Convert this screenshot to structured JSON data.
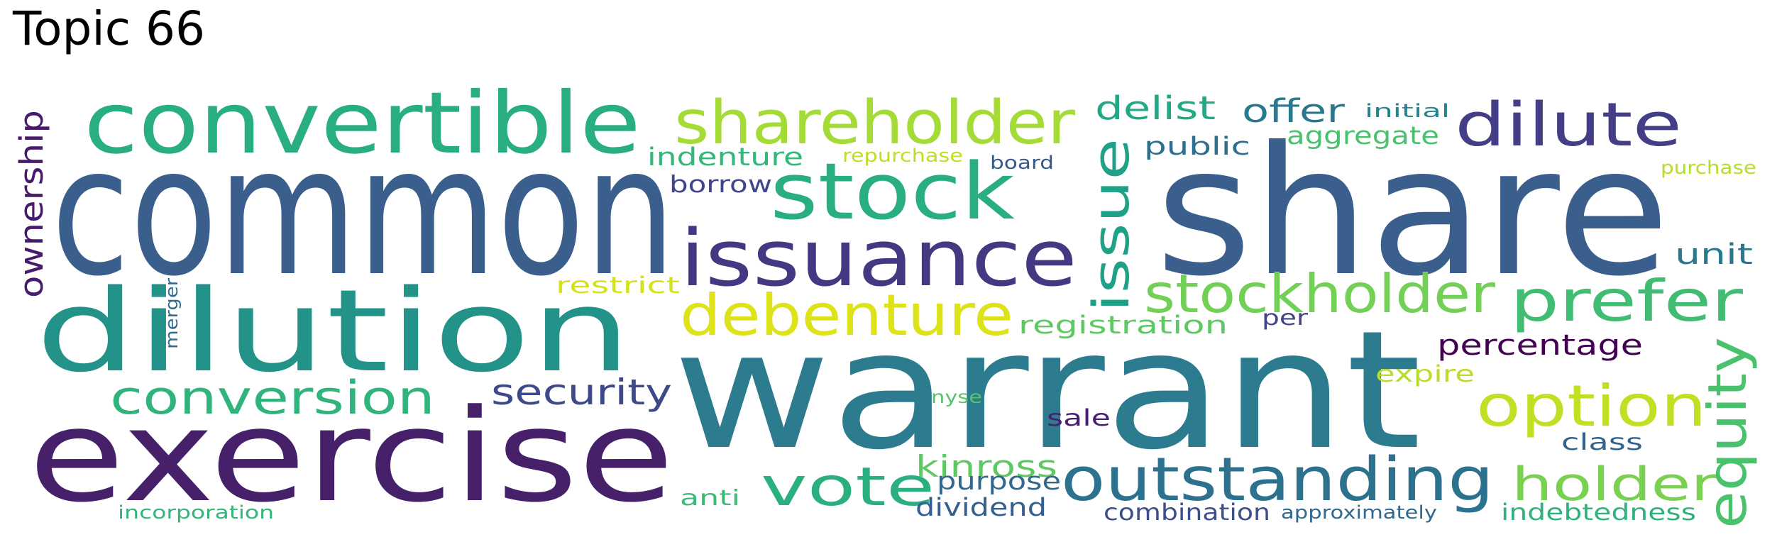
{
  "title": "Topic 66",
  "words": [
    {
      "text": "common",
      "color": "#3b5f8d"
    },
    {
      "text": "share",
      "color": "#3b5f8d"
    },
    {
      "text": "warrant",
      "color": "#2c7b8e"
    },
    {
      "text": "exercise",
      "color": "#46216a"
    },
    {
      "text": "dilution",
      "color": "#23938a"
    },
    {
      "text": "convertible",
      "color": "#29af7f"
    },
    {
      "text": "stock",
      "color": "#28ae80"
    },
    {
      "text": "issuance",
      "color": "#453781"
    },
    {
      "text": "shareholder",
      "color": "#a5db36"
    },
    {
      "text": "dilute",
      "color": "#433e85"
    },
    {
      "text": "debenture",
      "color": "#dde318"
    },
    {
      "text": "stockholder",
      "color": "#73d056"
    },
    {
      "text": "prefer",
      "color": "#40bd72"
    },
    {
      "text": "option",
      "color": "#c2df23"
    },
    {
      "text": "outstanding",
      "color": "#2c728e"
    },
    {
      "text": "conversion",
      "color": "#2fb47c"
    },
    {
      "text": "vote",
      "color": "#2ab07f"
    },
    {
      "text": "holder",
      "color": "#7ad151"
    },
    {
      "text": "equity",
      "color": "#4ac16d"
    },
    {
      "text": "issue",
      "color": "#1fa187"
    },
    {
      "text": "security",
      "color": "#3e4989"
    },
    {
      "text": "delist",
      "color": "#22a884"
    },
    {
      "text": "offer",
      "color": "#2a788e"
    },
    {
      "text": "ownership",
      "color": "#481a6c"
    },
    {
      "text": "percentage",
      "color": "#440154"
    },
    {
      "text": "indenture",
      "color": "#35b779"
    },
    {
      "text": "kinross",
      "color": "#5ec962"
    },
    {
      "text": "public",
      "color": "#2e6e8e"
    },
    {
      "text": "aggregate",
      "color": "#4ac16d"
    },
    {
      "text": "registration",
      "color": "#5ec962"
    },
    {
      "text": "purpose",
      "color": "#31688e"
    },
    {
      "text": "unit",
      "color": "#2a788e"
    },
    {
      "text": "borrow",
      "color": "#404688"
    },
    {
      "text": "dividend",
      "color": "#355f8d"
    },
    {
      "text": "combination",
      "color": "#3d4e8a"
    },
    {
      "text": "indebtedness",
      "color": "#2db27d"
    },
    {
      "text": "restrict",
      "color": "#d5e21a"
    },
    {
      "text": "repurchase",
      "color": "#bddf26"
    },
    {
      "text": "board",
      "color": "#375a8c"
    },
    {
      "text": "initial",
      "color": "#25838e"
    },
    {
      "text": "purchase",
      "color": "#b5de2b"
    },
    {
      "text": "expire",
      "color": "#b8de29"
    },
    {
      "text": "class",
      "color": "#33638d"
    },
    {
      "text": "sale",
      "color": "#481f70"
    },
    {
      "text": "per",
      "color": "#414487"
    },
    {
      "text": "nyse",
      "color": "#54c568"
    },
    {
      "text": "anti",
      "color": "#3bbb75"
    },
    {
      "text": "merger",
      "color": "#2f6c8e"
    },
    {
      "text": "incorporation",
      "color": "#34b679"
    },
    {
      "text": "approximately",
      "color": "#306a8e"
    }
  ]
}
